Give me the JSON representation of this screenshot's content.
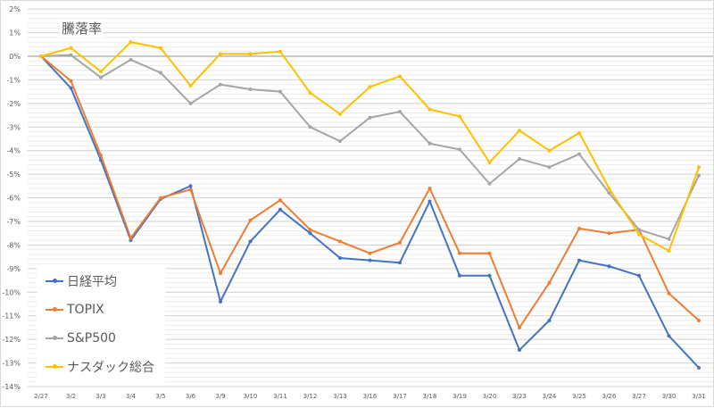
{
  "chart_data": {
    "type": "line",
    "title": "騰落率",
    "xlabel": "",
    "ylabel": "",
    "ylim": [
      -14,
      2
    ],
    "ytick_step": 1,
    "ytick_format": "%",
    "grid": true,
    "legend_position": "bottom-left",
    "categories": [
      "2/27",
      "3/2",
      "3/3",
      "3/4",
      "3/5",
      "3/6",
      "3/9",
      "3/10",
      "3/11",
      "3/12",
      "3/13",
      "3/16",
      "3/17",
      "3/18",
      "3/19",
      "3/20",
      "3/23",
      "3/24",
      "3/25",
      "3/26",
      "3/27",
      "3/30",
      "3/31"
    ],
    "series": [
      {
        "name": "日経平均",
        "color": "#4472c4",
        "values": [
          0,
          -1.35,
          -4.4,
          -7.8,
          -6.05,
          -5.5,
          -10.4,
          -7.85,
          -6.5,
          -7.5,
          -8.55,
          -8.65,
          -8.75,
          -6.15,
          -9.3,
          -9.3,
          -12.45,
          -11.2,
          -8.65,
          -8.9,
          -9.3,
          -11.85,
          -13.2
        ]
      },
      {
        "name": "TOPIX",
        "color": "#ed7d31",
        "values": [
          0,
          -1.05,
          -4.2,
          -7.7,
          -6.0,
          -5.65,
          -9.2,
          -6.95,
          -6.1,
          -7.35,
          -7.85,
          -8.35,
          -7.9,
          -5.6,
          -8.35,
          -8.35,
          -11.5,
          -9.6,
          -7.3,
          -7.5,
          -7.35,
          -10.05,
          -11.2
        ]
      },
      {
        "name": "S&P500",
        "color": "#a5a5a5",
        "values": [
          0,
          0.05,
          -0.9,
          -0.15,
          -0.7,
          -2.0,
          -1.2,
          -1.4,
          -1.5,
          -3.0,
          -3.6,
          -2.6,
          -2.35,
          -3.7,
          -3.95,
          -5.4,
          -4.35,
          -4.7,
          -4.15,
          -5.8,
          -7.35,
          -7.75,
          -5.05
        ]
      },
      {
        "name": "ナスダック総合",
        "color": "#ffc000",
        "values": [
          0,
          0.35,
          -0.65,
          0.6,
          0.35,
          -1.25,
          0.1,
          0.1,
          0.2,
          -1.55,
          -2.45,
          -1.3,
          -0.85,
          -2.25,
          -2.55,
          -4.5,
          -3.15,
          -4.0,
          -3.25,
          -5.6,
          -7.55,
          -8.25,
          -4.7
        ]
      }
    ]
  }
}
